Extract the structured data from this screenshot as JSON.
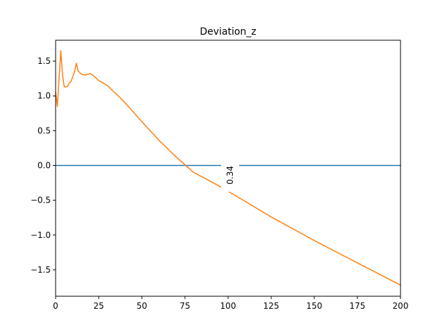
{
  "chart_data": {
    "type": "line",
    "title": "Deviation_z",
    "xlabel": "",
    "ylabel": "",
    "xlim": [
      0,
      200
    ],
    "ylim": [
      -1.88,
      1.8
    ],
    "xticks": [
      0,
      25,
      50,
      75,
      100,
      125,
      150,
      175,
      200
    ],
    "yticks": [
      1.5,
      1.0,
      0.5,
      0.0,
      -0.5,
      -1.0,
      -1.5
    ],
    "xtick_labels": [
      "0",
      "25",
      "50",
      "75",
      "100",
      "125",
      "150",
      "175",
      "200"
    ],
    "ytick_labels": [
      "1.5",
      "1.0",
      "0.5",
      "0.0",
      "−0.5",
      "−1.0",
      "−1.5"
    ],
    "grid": false,
    "series": [
      {
        "color": "#1f77b4",
        "x": [
          0,
          200
        ],
        "y": [
          0.0,
          0.0
        ]
      },
      {
        "color": "#ff7f0e",
        "x": [
          0,
          1,
          2,
          3,
          4,
          5,
          6,
          7,
          8,
          9,
          10,
          11,
          12,
          13,
          15,
          17,
          20,
          22,
          25,
          28,
          30,
          35,
          40,
          50,
          60,
          70,
          80,
          90,
          100,
          125,
          150,
          175,
          200
        ],
        "y": [
          1.05,
          0.85,
          1.25,
          1.65,
          1.3,
          1.13,
          1.13,
          1.14,
          1.19,
          1.21,
          1.28,
          1.35,
          1.47,
          1.36,
          1.31,
          1.3,
          1.32,
          1.29,
          1.22,
          1.18,
          1.15,
          1.03,
          0.91,
          0.63,
          0.36,
          0.12,
          -0.1,
          -0.23,
          -0.37,
          -0.74,
          -1.08,
          -1.4,
          -1.72
        ]
      }
    ],
    "annotations": [
      {
        "text": "0.34",
        "x": 100,
        "y": 0.0,
        "rotation": 90
      }
    ]
  }
}
